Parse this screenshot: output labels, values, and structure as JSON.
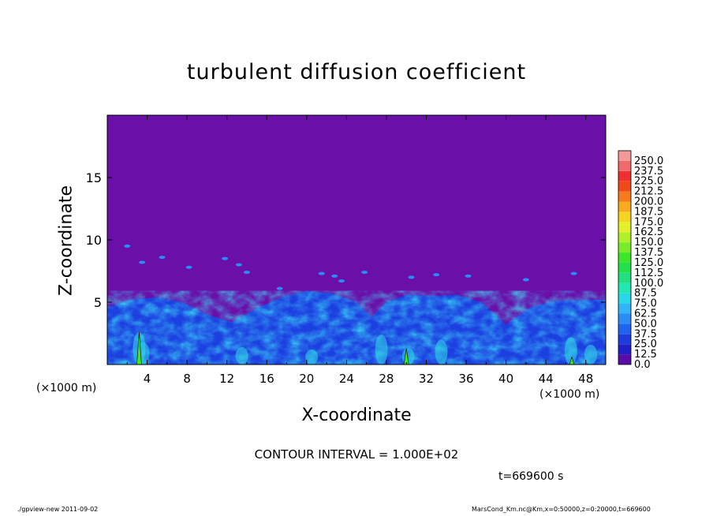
{
  "chart_data": {
    "type": "heatmap",
    "title": "turbulent diffusion coefficient",
    "xlabel": "X-coordinate",
    "ylabel": "Z-coordinate",
    "x_unit": "(×1000 m)",
    "xlim": [
      0,
      50
    ],
    "ylim": [
      0,
      20
    ],
    "x_ticks": [
      4,
      8,
      12,
      16,
      20,
      24,
      28,
      32,
      36,
      40,
      44,
      48
    ],
    "y_ticks": [
      5,
      10,
      15
    ],
    "colorbar": {
      "levels": [
        "0.0",
        "12.5",
        "25.0",
        "37.5",
        "50.0",
        "62.5",
        "75.0",
        "87.5",
        "100.0",
        "112.5",
        "125.0",
        "137.5",
        "150.0",
        "162.5",
        "175.0",
        "187.5",
        "200.0",
        "212.5",
        "225.0",
        "237.5",
        "250.0"
      ],
      "colors": [
        "#5a0ca8",
        "#2020c8",
        "#1e3cdc",
        "#1e64ee",
        "#2a8cf6",
        "#32b4f8",
        "#28d8e8",
        "#22e6b4",
        "#20e080",
        "#24e04c",
        "#3ee62a",
        "#78ec28",
        "#b0f028",
        "#e4f02a",
        "#f6d424",
        "#f8aa20",
        "#f87a1c",
        "#f04a1a",
        "#ee3030",
        "#f06a6a",
        "#f29a9a"
      ]
    },
    "background_value": 0.0,
    "contour_interval": "CONTOUR INTERVAL = 1.000E+02",
    "boundary_layer_top_km": [
      4.6,
      5.2,
      5.4,
      5.0,
      4.0,
      3.4,
      4.5,
      5.4,
      5.9,
      5.7,
      5.0,
      3.8,
      5.0,
      5.6,
      5.5,
      5.6,
      5.0,
      3.2,
      4.6,
      5.1,
      5.2
    ],
    "boundary_layer_x_km": [
      0,
      2.5,
      5,
      7.5,
      10,
      12.5,
      15,
      17.5,
      20,
      22.5,
      25,
      26.5,
      28,
      30,
      32.5,
      35,
      37.5,
      40,
      42.5,
      45,
      50
    ]
  },
  "annotations": {
    "time": "t=669600 s",
    "footer_left": "./gpview-new   2011-09-02",
    "footer_right": "MarsCond_Km.nc@Km,x=0:50000,z=0:20000,t=669600"
  },
  "colors": {
    "background": "#6a0fa8",
    "frame": "#000000"
  }
}
